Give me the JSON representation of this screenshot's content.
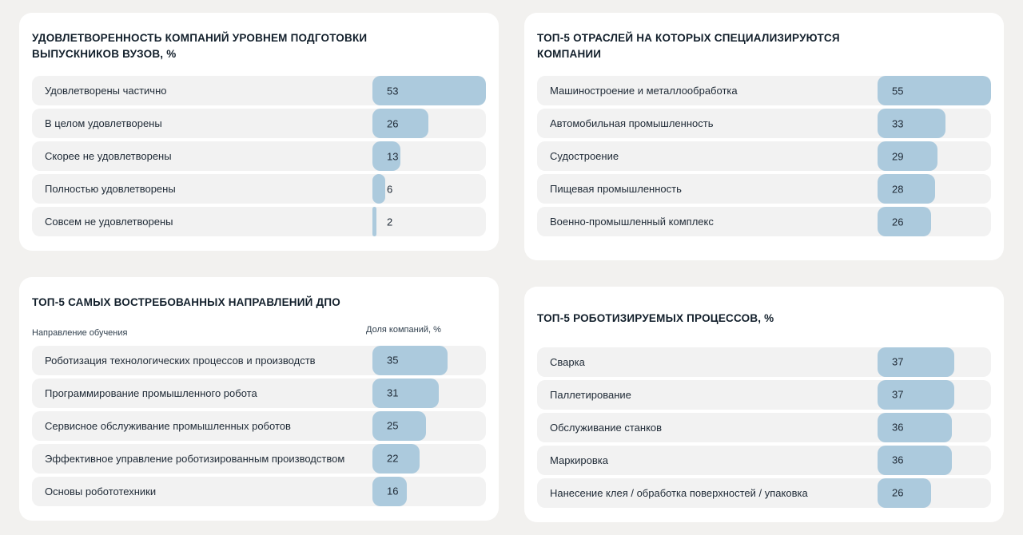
{
  "colors": {
    "page_bg": "#f2f1ef",
    "card_bg": "#ffffff",
    "row_bg": "#f2f2f2",
    "bar": "#accadd",
    "title_text": "#121f2b",
    "label_text": "#212c38"
  },
  "chart_data": [
    {
      "type": "bar",
      "orientation": "horizontal",
      "title": "УДОВЛЕТВОРЕННОСТЬ КОМПАНИЙ УРОВНЕМ ПОДГОТОВКИ ВЫПУСКНИКОВ ВУЗОВ, %",
      "categories": [
        "Удовлетворены частично",
        "В целом удовлетворены",
        "Скорее не удовлетворены",
        "Полностью удовлетворены",
        "Совсем не удовлетворены"
      ],
      "values": [
        53,
        26,
        13,
        6,
        2
      ],
      "xlim": [
        0,
        53
      ],
      "grid": false,
      "legend": "none"
    },
    {
      "type": "bar",
      "orientation": "horizontal",
      "title": "ТОП-5 ОТРАСЛЕЙ НА КОТОРЫХ СПЕЦИАЛИЗИРУЮТСЯ КОМПАНИИ",
      "categories": [
        "Машиностроение и металлообработка",
        "Автомобильная промышленность",
        "Судостроение",
        "Пищевая промышленность",
        "Военно-промышленный комплекс"
      ],
      "values": [
        55,
        33,
        29,
        28,
        26
      ],
      "xlim": [
        0,
        55
      ],
      "grid": false,
      "legend": "none"
    },
    {
      "type": "bar",
      "orientation": "horizontal",
      "title": "ТОП-5 САМЫХ ВОСТРЕБОВАННЫХ НАПРАВЛЕНИЙ ДПО",
      "ylabel": "Направление обучения",
      "xlabel": "Доля компаний, %",
      "categories": [
        "Роботизация технологических процессов и производств",
        "Программирование промышленного робота",
        "Сервисное обслуживание промышленных роботов",
        "Эффективное управление роботизированным производством",
        "Основы робототехники"
      ],
      "values": [
        35,
        31,
        25,
        22,
        16
      ],
      "xlim": [
        0,
        53
      ],
      "grid": false,
      "legend": "none"
    },
    {
      "type": "bar",
      "orientation": "horizontal",
      "title": "ТОП-5 РОБОТИЗИРУЕМЫХ ПРОЦЕССОВ, %",
      "categories": [
        "Сварка",
        "Паллетирование",
        "Обслуживание станков",
        "Маркировка",
        "Нанесение клея / обработка поверхностей / упаковка"
      ],
      "values": [
        37,
        37,
        36,
        36,
        26
      ],
      "xlim": [
        0,
        55
      ],
      "grid": false,
      "legend": "none"
    }
  ]
}
